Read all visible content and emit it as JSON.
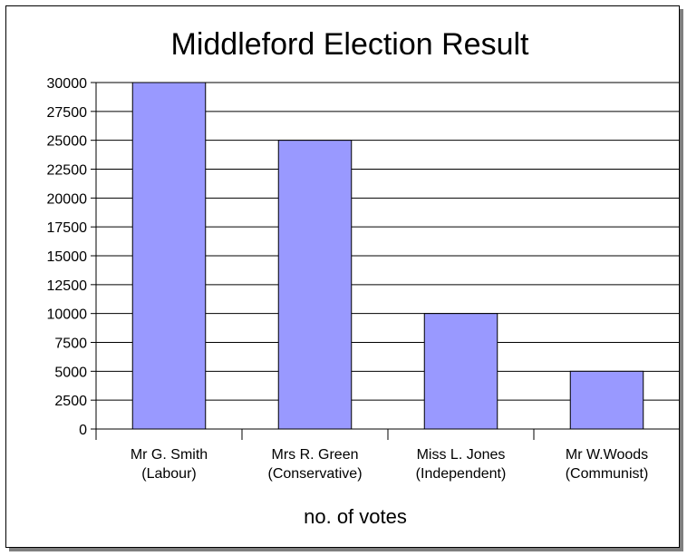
{
  "chart_data": {
    "type": "bar",
    "title": "Middleford Election Result",
    "xlabel": "no. of votes",
    "ylabel": "",
    "categories": [
      [
        "Mr G. Smith",
        "(Labour)"
      ],
      [
        "Mrs R. Green",
        "(Conservative)"
      ],
      [
        "Miss L. Jones",
        "(Independent)"
      ],
      [
        "Mr W.Woods",
        "(Communist)"
      ]
    ],
    "values": [
      30000,
      25000,
      10000,
      5000
    ],
    "ylim": [
      0,
      30000
    ],
    "ytick_step": 2500,
    "grid": true,
    "bar_color": "#9999ff",
    "bar_edge_color": "#000000"
  }
}
